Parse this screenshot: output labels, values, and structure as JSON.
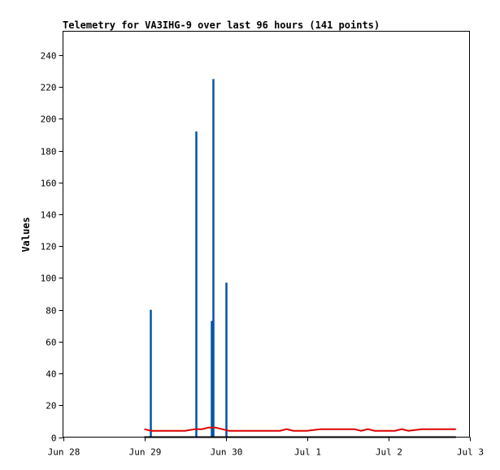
{
  "chart_data": {
    "type": "line",
    "title": "Telemetry for VA3IHG-9 over last 96 hours (141 points)",
    "xlabel": "",
    "ylabel": "Values",
    "ylim": [
      0,
      255
    ],
    "xlim": [
      "2023-06-28T00:00",
      "2023-07-03T00:00"
    ],
    "y_ticks": [
      0,
      20,
      40,
      60,
      80,
      100,
      120,
      140,
      160,
      180,
      200,
      220,
      240
    ],
    "x_ticks": [
      {
        "label": "Jun 28",
        "t": "2023-06-28T00:00"
      },
      {
        "label": "Jun 29",
        "t": "2023-06-29T00:00"
      },
      {
        "label": "Jun 30",
        "t": "2023-06-30T00:00"
      },
      {
        "label": "Jul 1",
        "t": "2023-07-01T00:00"
      },
      {
        "label": "Jul 2",
        "t": "2023-07-02T00:00"
      },
      {
        "label": "Jul 3",
        "t": "2023-07-03T00:00"
      }
    ],
    "grid": false,
    "series": [
      {
        "color": "#0055aa",
        "style": "spikes",
        "points": [
          {
            "t": "2023-06-29T01:45",
            "y": 80
          },
          {
            "t": "2023-06-29T15:15",
            "y": 192
          },
          {
            "t": "2023-06-29T19:45",
            "y": 73
          },
          {
            "t": "2023-06-29T20:15",
            "y": 225
          },
          {
            "t": "2023-06-30T00:00",
            "y": 97
          }
        ]
      },
      {
        "color": "#dd0000",
        "style": "line",
        "points": [
          {
            "t": "2023-06-29T00:00",
            "y": 5
          },
          {
            "t": "2023-06-29T02:00",
            "y": 4
          },
          {
            "t": "2023-06-29T06:00",
            "y": 4
          },
          {
            "t": "2023-06-29T12:00",
            "y": 4
          },
          {
            "t": "2023-06-29T15:00",
            "y": 5
          },
          {
            "t": "2023-06-29T17:00",
            "y": 5
          },
          {
            "t": "2023-06-29T19:00",
            "y": 6
          },
          {
            "t": "2023-06-29T21:00",
            "y": 6
          },
          {
            "t": "2023-06-29T23:00",
            "y": 5
          },
          {
            "t": "2023-06-30T01:00",
            "y": 4
          },
          {
            "t": "2023-06-30T06:00",
            "y": 4
          },
          {
            "t": "2023-06-30T12:00",
            "y": 4
          },
          {
            "t": "2023-06-30T16:00",
            "y": 4
          },
          {
            "t": "2023-06-30T18:00",
            "y": 5
          },
          {
            "t": "2023-06-30T20:00",
            "y": 4
          },
          {
            "t": "2023-07-01T00:00",
            "y": 4
          },
          {
            "t": "2023-07-01T04:00",
            "y": 5
          },
          {
            "t": "2023-07-01T10:00",
            "y": 5
          },
          {
            "t": "2023-07-01T12:00",
            "y": 5
          },
          {
            "t": "2023-07-01T14:00",
            "y": 5
          },
          {
            "t": "2023-07-01T16:00",
            "y": 4
          },
          {
            "t": "2023-07-01T18:00",
            "y": 5
          },
          {
            "t": "2023-07-01T20:00",
            "y": 4
          },
          {
            "t": "2023-07-02T02:00",
            "y": 4
          },
          {
            "t": "2023-07-02T04:00",
            "y": 5
          },
          {
            "t": "2023-07-02T06:00",
            "y": 4
          },
          {
            "t": "2023-07-02T10:00",
            "y": 5
          },
          {
            "t": "2023-07-02T16:00",
            "y": 5
          },
          {
            "t": "2023-07-02T18:00",
            "y": 5
          },
          {
            "t": "2023-07-02T20:00",
            "y": 5
          }
        ]
      },
      {
        "color": "#000000",
        "style": "line",
        "points": [
          {
            "t": "2023-06-29T00:00",
            "y": 0
          },
          {
            "t": "2023-07-02T20:00",
            "y": 0
          }
        ]
      }
    ]
  }
}
